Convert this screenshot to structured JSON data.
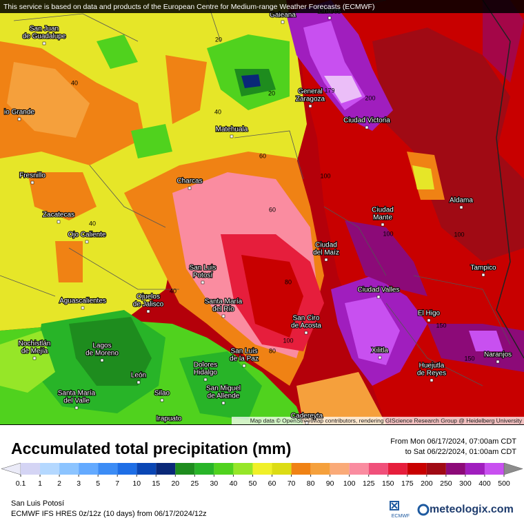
{
  "header": {
    "notice": "This service is based on data and products of the European Centre for Medium-range Weather Forecasts (ECMWF)"
  },
  "map": {
    "cities": [
      [
        "Galeana"
      ],
      [
        "Linares"
      ],
      [
        "San Juan",
        "de Guadalupe"
      ],
      [
        "io Grande"
      ],
      [
        "General",
        "Zaragoza"
      ],
      [
        "Ciudad Victoria"
      ],
      [
        "Matehuala"
      ],
      [
        "Fresnillo"
      ],
      [
        "Charcas"
      ],
      [
        "Aldama"
      ],
      [
        "Zacatecas"
      ],
      [
        "Ciudad",
        "Mante"
      ],
      [
        "Ojo Caliente"
      ],
      [
        "Ciudad",
        "del Maíz"
      ],
      [
        "Tampico"
      ],
      [
        "San Luis",
        "Potosí"
      ],
      [
        "Ciudad Valles"
      ],
      [
        "Ojuelos",
        "de Jalisco"
      ],
      [
        "Aguascalientes"
      ],
      [
        "Santa María",
        "del Río"
      ],
      [
        "El Higo"
      ],
      [
        "San Ciro",
        "de Acosta"
      ],
      [
        "Nochistlán",
        "de Mejía"
      ],
      [
        "Lagos",
        "de Moreno"
      ],
      [
        "San Luis",
        "de la Paz"
      ],
      [
        "Xilitla"
      ],
      [
        "Naranjos"
      ],
      [
        "Huejutla",
        "de Reyes"
      ],
      [
        "León"
      ],
      [
        "Dolores",
        "Hidalgo"
      ],
      [
        "Santa María",
        "del Valle"
      ],
      [
        "Silao"
      ],
      [
        "San Miguel",
        "de Allende"
      ],
      [
        "Irapuato"
      ],
      [
        "Cadereyta"
      ]
    ],
    "contour_labels": [
      40,
      20,
      20,
      40,
      60,
      60,
      100,
      200,
      179,
      40,
      40,
      80,
      100,
      80,
      100,
      100,
      150,
      150
    ],
    "attribution": "Map data © OpenStreetMap contributors, rendering GIScience Research Group @ Heidelberg University"
  },
  "legend": {
    "title": "Accumulated total precipitation (mm)",
    "period": [
      "From Mon 06/17/2024, 07:00am CDT",
      "to Sat 06/22/2024, 01:00am CDT"
    ],
    "levels": [
      0.1,
      1,
      2,
      3,
      5,
      7,
      10,
      15,
      20,
      25,
      30,
      40,
      50,
      60,
      70,
      80,
      90,
      100,
      125,
      150,
      175,
      200,
      250,
      300,
      400,
      500
    ],
    "colors": [
      "#ebebf8",
      "#d4d4f4",
      "#b4d8ff",
      "#8cc4ff",
      "#64aaff",
      "#3c8cf5",
      "#1e6ee6",
      "#0a46b4",
      "#0a2878",
      "#1e8c1e",
      "#28b428",
      "#50d21e",
      "#96e628",
      "#f0f028",
      "#dcdc14",
      "#f08214",
      "#f5a03c",
      "#faaa78",
      "#fa8ca0",
      "#f0507a",
      "#e61e3c",
      "#c80000",
      "#a00a14",
      "#8c0a78",
      "#a01ebe",
      "#c850f0",
      "#dc8cf5",
      "#ebbef8",
      "#f8e6fa",
      "#d2d2d2",
      "#8c8c8c"
    ]
  },
  "footer": {
    "location": "San Luis Potosí",
    "model": "ECMWF IFS HRES 0z/12z (10 days) from 06/17/2024/12z",
    "ecmwf": "ECMWF",
    "brand": "meteologix.com"
  }
}
